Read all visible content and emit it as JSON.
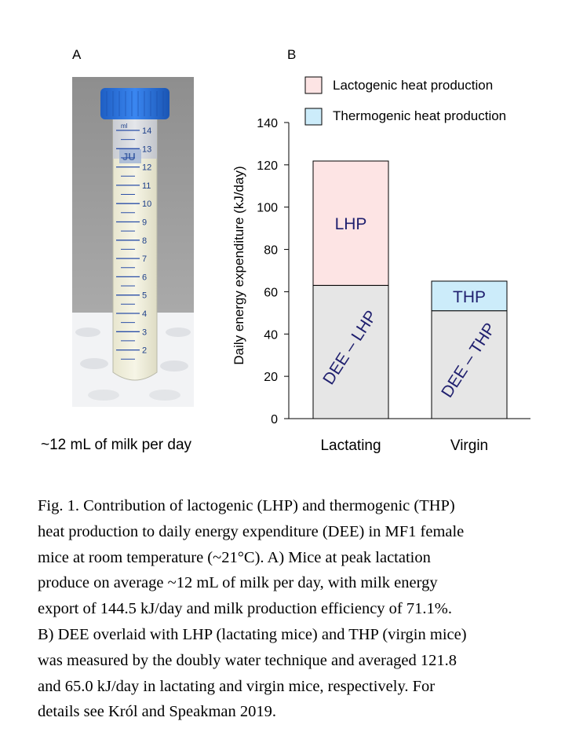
{
  "panels": {
    "a_label": "A",
    "b_label": "B"
  },
  "photo": {
    "caption": "~12 mL of milk per day",
    "unit_label": "ml",
    "tube_label": "JU",
    "graduations": [
      "14",
      "13",
      "12",
      "11",
      "10",
      "9",
      "8",
      "7",
      "6",
      "5",
      "4",
      "3",
      "2"
    ]
  },
  "colors": {
    "lactogenic": "#fde4e4",
    "thermogenic": "#ccecfa",
    "base": "#e6e6e6",
    "bar_text": "#1f1f6e"
  },
  "chart_data": {
    "type": "bar",
    "stacked": true,
    "categories": [
      "Lactating",
      "Virgin"
    ],
    "ylabel": "Daily energy expenditure  (kJ/day)",
    "ylim": [
      0,
      140
    ],
    "yticks": [
      "0",
      "20",
      "40",
      "60",
      "80",
      "100",
      "120",
      "140"
    ],
    "grid": false,
    "legend_position": "top-right",
    "legend": [
      "Lactogenic heat production",
      "Thermogenic heat production"
    ],
    "bars": [
      {
        "category": "Lactating",
        "base": 63,
        "top": 121.8,
        "top_type": "lactogenic",
        "base_label": "DEE – LHP",
        "top_label": "LHP"
      },
      {
        "category": "Virgin",
        "base": 51,
        "top": 65.0,
        "top_type": "thermogenic",
        "base_label": "DEE – THP",
        "top_label": "THP"
      }
    ]
  },
  "caption_lines": [
    "Fig. 1. Contribution of lactogenic (LHP) and thermogenic (THP)",
    "heat production to daily energy expenditure (DEE) in MF1 female",
    "mice at room temperature (~21°C). A) Mice at peak lactation",
    "produce on average ~12 mL of milk per day, with milk energy",
    "export of 144.5 kJ/day and milk production efficiency of 71.1%.",
    "B) DEE overlaid with LHP (lactating mice) and THP (virgin mice)",
    "was measured by the doubly water technique and averaged 121.8",
    "and 65.0 kJ/day in lactating and virgin mice, respectively. For",
    "details see Król and Speakman 2019."
  ]
}
